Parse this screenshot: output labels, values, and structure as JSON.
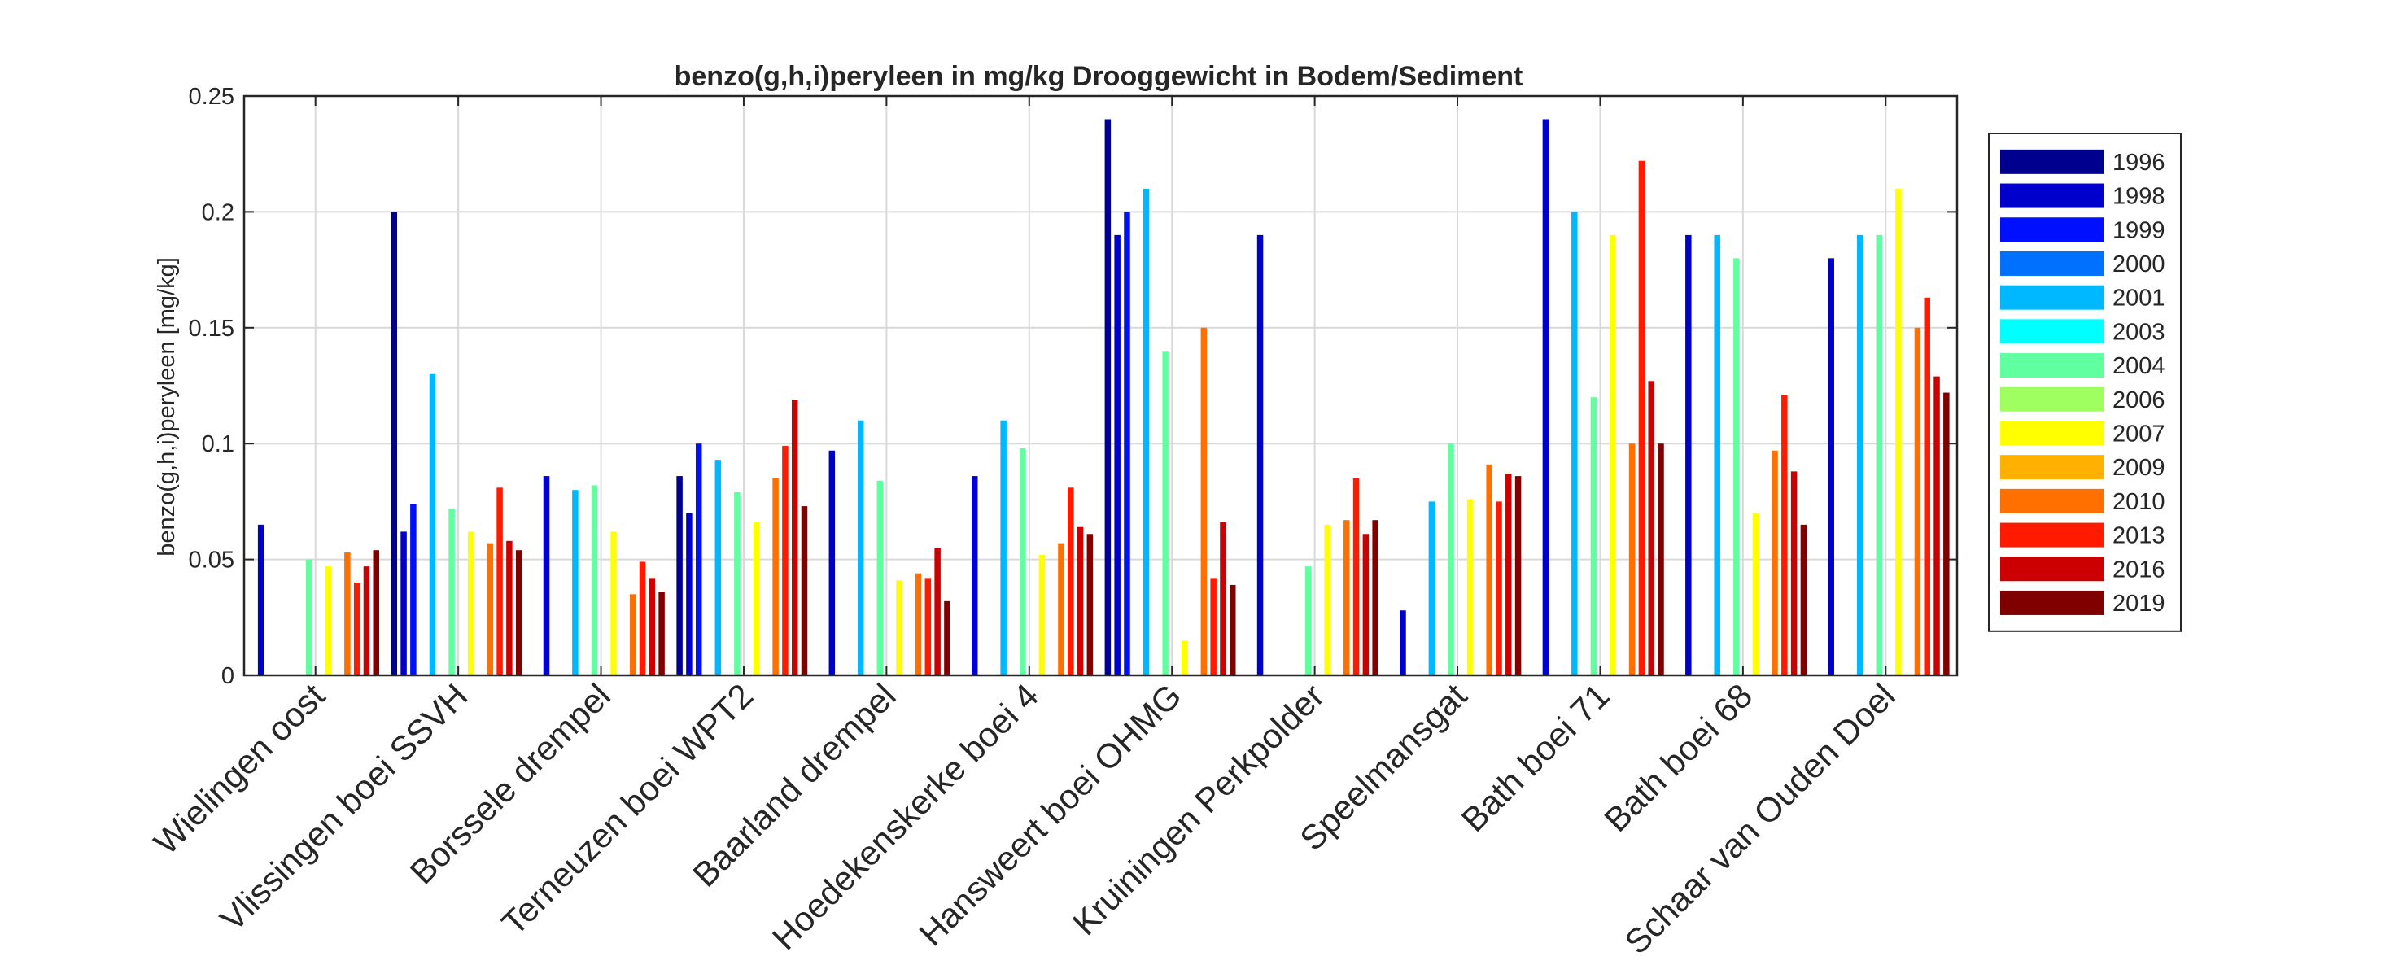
{
  "chart_data": {
    "type": "bar",
    "title": "benzo(g,h,i)peryleen in mg/kg Drooggewicht in Bodem/Sediment",
    "xlabel": "",
    "ylabel": "benzo(g,h,i)peryleen [mg/kg]",
    "ylim": [
      0,
      0.25
    ],
    "yticks": [
      "0",
      "0.05",
      "0.1",
      "0.15",
      "0.2",
      "0.25"
    ],
    "grid": true,
    "legend_position": "right",
    "categories": [
      "Wielingen oost",
      "Vlissingen boei SSVH",
      "Borssele drempel",
      "Terneuzen boei WPT2",
      "Baarland drempel",
      "Hoedekenskerke boei 4",
      "Hansweert boei OHMG",
      "Kruiningen Perkpolder",
      "Speelmansgat",
      "Bath boei 71",
      "Bath boei 68",
      "Schaar van Ouden Doel"
    ],
    "series": [
      {
        "name": "1996",
        "color": "#00008f",
        "values": [
          null,
          0.2,
          null,
          0.086,
          null,
          null,
          0.24,
          null,
          null,
          null,
          null,
          null
        ]
      },
      {
        "name": "1998",
        "color": "#0000cc",
        "values": [
          0.065,
          0.062,
          0.086,
          0.07,
          0.097,
          0.086,
          0.19,
          0.19,
          0.028,
          0.24,
          0.19,
          0.18
        ]
      },
      {
        "name": "1999",
        "color": "#0010ff",
        "values": [
          null,
          0.074,
          null,
          0.1,
          null,
          null,
          0.2,
          null,
          null,
          null,
          null,
          null
        ]
      },
      {
        "name": "2000",
        "color": "#0070ff",
        "values": [
          null,
          null,
          null,
          null,
          null,
          null,
          null,
          null,
          null,
          null,
          null,
          null
        ]
      },
      {
        "name": "2001",
        "color": "#00b8ff",
        "values": [
          null,
          0.13,
          0.08,
          0.093,
          0.11,
          0.11,
          0.21,
          null,
          0.075,
          0.2,
          0.19,
          0.19
        ]
      },
      {
        "name": "2003",
        "color": "#00ffff",
        "values": [
          null,
          null,
          null,
          null,
          null,
          null,
          null,
          null,
          null,
          null,
          null,
          null
        ]
      },
      {
        "name": "2004",
        "color": "#60ffa0",
        "values": [
          0.05,
          0.072,
          0.082,
          0.079,
          0.084,
          0.098,
          0.14,
          0.047,
          0.1,
          0.12,
          0.18,
          0.19
        ]
      },
      {
        "name": "2006",
        "color": "#a0ff60",
        "values": [
          null,
          null,
          null,
          null,
          null,
          null,
          null,
          null,
          null,
          null,
          null,
          null
        ]
      },
      {
        "name": "2007",
        "color": "#ffff00",
        "values": [
          0.047,
          0.062,
          0.062,
          0.066,
          0.041,
          0.052,
          0.015,
          0.065,
          0.076,
          0.19,
          0.07,
          0.21
        ]
      },
      {
        "name": "2009",
        "color": "#ffb000",
        "values": [
          null,
          null,
          null,
          null,
          null,
          null,
          null,
          null,
          null,
          null,
          null,
          null
        ]
      },
      {
        "name": "2010",
        "color": "#ff7000",
        "values": [
          0.053,
          0.057,
          0.035,
          0.085,
          0.044,
          0.057,
          0.15,
          0.067,
          0.091,
          0.1,
          0.097,
          0.15
        ]
      },
      {
        "name": "2013",
        "color": "#ff1a00",
        "values": [
          0.04,
          0.081,
          0.049,
          0.099,
          0.042,
          0.081,
          0.042,
          0.085,
          0.075,
          0.222,
          0.121,
          0.163
        ]
      },
      {
        "name": "2016",
        "color": "#cc0000",
        "values": [
          0.047,
          0.058,
          0.042,
          0.119,
          0.055,
          0.064,
          0.066,
          0.061,
          0.087,
          0.127,
          0.088,
          0.129
        ]
      },
      {
        "name": "2019",
        "color": "#800000",
        "values": [
          0.054,
          0.054,
          0.036,
          0.073,
          0.032,
          0.061,
          0.039,
          0.067,
          0.086,
          0.1,
          0.065,
          0.122
        ]
      }
    ]
  }
}
